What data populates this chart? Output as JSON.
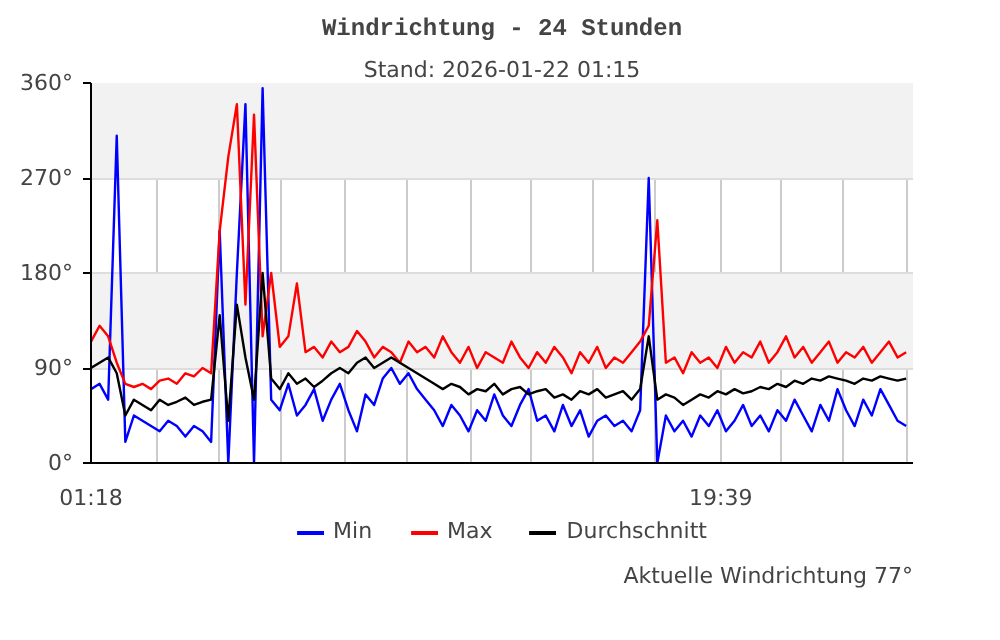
{
  "chart_data": {
    "type": "line",
    "title": "Windrichtung - 24 Stunden",
    "subtitle": "Stand: 2026-01-22 01:15",
    "annotations": [
      "Aktuelle Windrichtung 77°"
    ],
    "x": [
      1.3,
      1.55,
      1.8,
      2.05,
      2.3,
      2.55,
      2.8,
      3.05,
      3.3,
      3.55,
      3.8,
      4.05,
      4.3,
      4.55,
      4.8,
      5.05,
      5.3,
      5.55,
      5.8,
      6.05,
      6.3,
      6.55,
      6.8,
      7.05,
      7.3,
      7.55,
      7.8,
      8.05,
      8.3,
      8.55,
      8.8,
      9.05,
      9.3,
      9.55,
      9.8,
      10.05,
      10.3,
      10.55,
      10.8,
      11.05,
      11.3,
      11.55,
      11.8,
      12.05,
      12.3,
      12.55,
      12.8,
      13.05,
      13.3,
      13.55,
      13.8,
      14.05,
      14.3,
      14.55,
      14.8,
      15.05,
      15.3,
      15.55,
      15.8,
      16.05,
      16.3,
      16.55,
      16.8,
      17.05,
      17.3,
      17.55,
      17.8,
      18.05,
      18.3,
      18.55,
      18.8,
      19.05,
      19.3,
      19.55,
      19.8,
      20.05,
      20.3,
      20.55,
      20.8,
      21.05,
      21.3,
      21.55,
      21.8,
      22.05,
      22.3,
      22.55,
      22.8,
      23.05,
      23.3,
      23.55,
      23.8,
      24.05,
      24.3,
      24.55,
      24.8,
      25.05
    ],
    "series": [
      {
        "name": "Min",
        "color": "#0000ff",
        "values": [
          70,
          75,
          60,
          310,
          20,
          45,
          40,
          35,
          30,
          40,
          35,
          25,
          35,
          30,
          20,
          220,
          0,
          180,
          340,
          0,
          355,
          60,
          50,
          75,
          45,
          55,
          70,
          40,
          60,
          75,
          50,
          30,
          65,
          55,
          80,
          90,
          75,
          85,
          70,
          60,
          50,
          35,
          55,
          45,
          30,
          50,
          40,
          65,
          45,
          35,
          55,
          70,
          40,
          45,
          30,
          55,
          35,
          50,
          25,
          40,
          45,
          35,
          40,
          30,
          50,
          270,
          0,
          45,
          30,
          40,
          25,
          45,
          35,
          50,
          30,
          40,
          55,
          35,
          45,
          30,
          50,
          40,
          60,
          45,
          30,
          55,
          40,
          70,
          50,
          35,
          60,
          45,
          70,
          55,
          40,
          35
        ]
      },
      {
        "name": "Max",
        "color": "#ff0000",
        "values": [
          115,
          130,
          120,
          95,
          75,
          72,
          75,
          70,
          78,
          80,
          75,
          85,
          82,
          90,
          85,
          220,
          290,
          340,
          150,
          330,
          120,
          180,
          110,
          120,
          170,
          105,
          110,
          100,
          115,
          105,
          110,
          125,
          115,
          100,
          110,
          105,
          95,
          115,
          105,
          110,
          100,
          120,
          105,
          95,
          110,
          90,
          105,
          100,
          95,
          115,
          100,
          90,
          105,
          95,
          110,
          100,
          85,
          105,
          95,
          110,
          90,
          100,
          95,
          105,
          115,
          130,
          230,
          95,
          100,
          85,
          105,
          95,
          100,
          90,
          110,
          95,
          105,
          100,
          115,
          95,
          105,
          120,
          100,
          110,
          95,
          105,
          115,
          95,
          105,
          100,
          110,
          95,
          105,
          115,
          100,
          105
        ]
      },
      {
        "name": "Durchschnitt",
        "color": "#000000",
        "values": [
          90,
          95,
          100,
          85,
          45,
          60,
          55,
          50,
          60,
          55,
          58,
          62,
          55,
          58,
          60,
          140,
          40,
          150,
          100,
          60,
          180,
          80,
          70,
          85,
          75,
          80,
          72,
          78,
          85,
          90,
          85,
          95,
          100,
          90,
          95,
          100,
          95,
          90,
          85,
          80,
          75,
          70,
          75,
          72,
          65,
          70,
          68,
          75,
          65,
          70,
          72,
          65,
          68,
          70,
          62,
          65,
          60,
          68,
          65,
          70,
          62,
          65,
          68,
          60,
          70,
          120,
          60,
          65,
          62,
          55,
          60,
          65,
          62,
          68,
          65,
          70,
          66,
          68,
          72,
          70,
          75,
          72,
          78,
          75,
          80,
          78,
          82,
          80,
          78,
          75,
          80,
          78,
          82,
          80,
          78,
          80
        ]
      }
    ],
    "xlim": [
      1.3,
      25.25
    ],
    "xticks": [
      {
        "value": 1.3,
        "label": "01:18"
      },
      {
        "value": 3.21,
        "label": null
      },
      {
        "value": 5.03,
        "label": null
      },
      {
        "value": 6.84,
        "label": null
      },
      {
        "value": 8.7,
        "label": null
      },
      {
        "value": 10.51,
        "label": null
      },
      {
        "value": 12.37,
        "label": null
      },
      {
        "value": 14.12,
        "label": null
      },
      {
        "value": 15.93,
        "label": null
      },
      {
        "value": 17.73,
        "label": null
      },
      {
        "value": 19.65,
        "label": "19:39"
      },
      {
        "value": 21.4,
        "label": null
      },
      {
        "value": 23.21,
        "label": null
      },
      {
        "value": 25.08,
        "label": null
      }
    ],
    "ylim": [
      0,
      360
    ],
    "yticks": [
      {
        "value": 0,
        "label": "0°"
      },
      {
        "value": 90,
        "label": "90°"
      },
      {
        "value": 180,
        "label": "180°"
      },
      {
        "value": 270,
        "label": "270°"
      },
      {
        "value": 360,
        "label": "360°"
      }
    ],
    "grid": true,
    "legend": "bottom"
  }
}
